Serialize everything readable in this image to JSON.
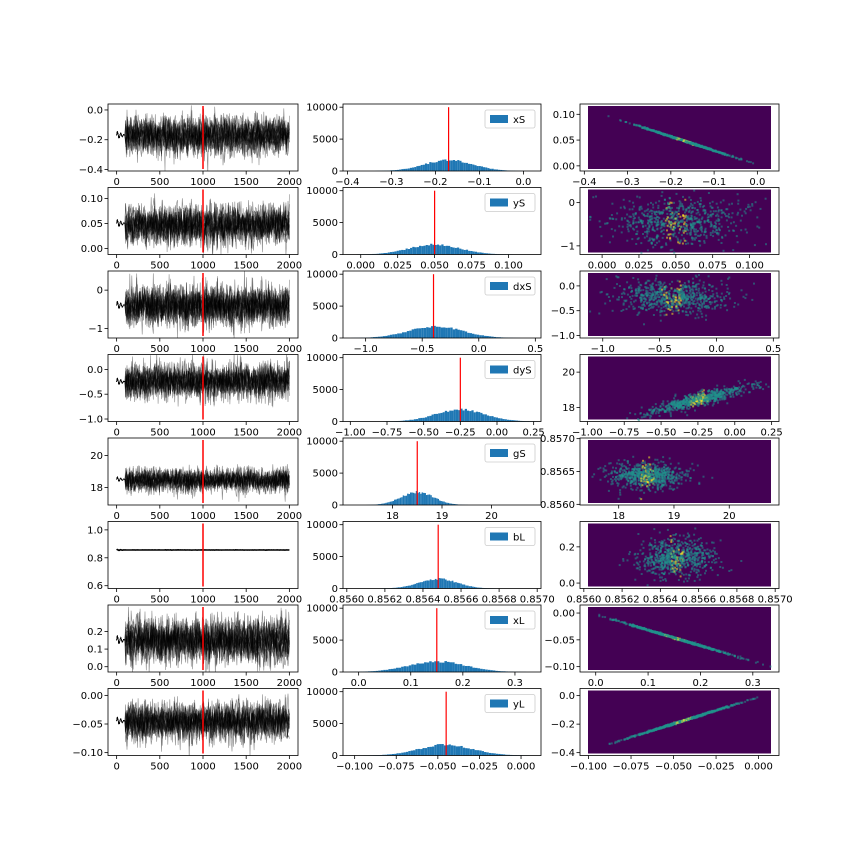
{
  "colors": {
    "trace": "#000000",
    "vline": "#ff0000",
    "hist": "#1f77b4",
    "heat_bg": "#440154",
    "heat_mid": "#21918c",
    "heat_high": "#fde725"
  },
  "chart_data": [
    {
      "type": "line",
      "series_description_name": "xS",
      "xlim": [
        -100,
        2100
      ],
      "ylim": [
        -0.41,
        0.04
      ],
      "xticks": [
        0,
        500,
        1000,
        1500,
        2000
      ],
      "yticks": [
        -0.4,
        -0.2,
        0.0
      ],
      "ytick_labels": [
        "−0.4",
        "−0.2",
        "0.0"
      ],
      "xtick_labels": [
        "0",
        "500",
        "1000",
        "1500",
        "2000"
      ],
      "burnin_line_x": 1000,
      "center": -0.17,
      "spread": 0.06,
      "hist": {
        "label": "xS",
        "xlim": [
          -0.41,
          0.04
        ],
        "ylim": [
          0,
          10500
        ],
        "xticks": [
          -0.4,
          -0.3,
          -0.2,
          -0.1,
          0.0
        ],
        "xtick_labels": [
          "−0.4",
          "−0.3",
          "−0.2",
          "−0.1",
          "0.0"
        ],
        "yticks": [
          0,
          5000,
          10000
        ],
        "ytick_labels": [
          "0",
          "5000",
          "10000"
        ],
        "mean": -0.17,
        "sd": 0.055,
        "peak": 1700,
        "marker": -0.17
      },
      "heatmap": {
        "xlim": [
          -0.41,
          0.05
        ],
        "ylim": [
          -0.01,
          0.12
        ],
        "xticks": [
          -0.4,
          -0.3,
          -0.2,
          -0.1,
          0.0
        ],
        "xtick_labels": [
          "−0.4",
          "−0.3",
          "−0.2",
          "−0.1",
          "0.0"
        ],
        "yticks": [
          0.0,
          0.05,
          0.1
        ],
        "ytick_labels": [
          "0.00",
          "0.05",
          "0.10"
        ],
        "shape": "line",
        "mx": -0.17,
        "my": 0.05,
        "sx": 0.055,
        "sy": 0.015,
        "slope": -0.46
      }
    },
    {
      "type": "line",
      "xlim": [
        -100,
        2100
      ],
      "ylim": [
        -0.012,
        0.122
      ],
      "xticks": [
        0,
        500,
        1000,
        1500,
        2000
      ],
      "xtick_labels": [
        "0",
        "500",
        "1000",
        "1500",
        "2000"
      ],
      "yticks": [
        0.0,
        0.05,
        0.1
      ],
      "ytick_labels": [
        "0.00",
        "0.05",
        "0.10"
      ],
      "burnin_line_x": 1000,
      "center": 0.05,
      "spread": 0.018,
      "hist": {
        "label": "yS",
        "xlim": [
          -0.012,
          0.122
        ],
        "ylim": [
          0,
          10500
        ],
        "xticks": [
          0.0,
          0.025,
          0.05,
          0.075,
          0.1
        ],
        "xtick_labels": [
          "0.000",
          "0.025",
          "0.050",
          "0.075",
          "0.100"
        ],
        "yticks": [
          0,
          5000,
          10000
        ],
        "ytick_labels": [
          "0",
          "5000",
          "10000"
        ],
        "mean": 0.05,
        "sd": 0.017,
        "peak": 1600,
        "marker": 0.05
      },
      "heatmap": {
        "xlim": [
          -0.015,
          0.12
        ],
        "ylim": [
          -1.2,
          0.35
        ],
        "xticks": [
          0.0,
          0.025,
          0.05,
          0.075,
          0.1
        ],
        "xtick_labels": [
          "0.000",
          "0.025",
          "0.050",
          "0.075",
          "0.100"
        ],
        "yticks": [
          -1,
          0
        ],
        "ytick_labels": [
          "−1",
          "0"
        ],
        "shape": "blob",
        "mx": 0.05,
        "my": -0.4,
        "sx": 0.022,
        "sy": 0.28,
        "slope": 0
      }
    },
    {
      "type": "line",
      "xlim": [
        -100,
        2100
      ],
      "ylim": [
        -1.25,
        0.5
      ],
      "xticks": [
        0,
        500,
        1000,
        1500,
        2000
      ],
      "xtick_labels": [
        "0",
        "500",
        "1000",
        "1500",
        "2000"
      ],
      "yticks": [
        -1,
        0
      ],
      "ytick_labels": [
        "−1",
        "0"
      ],
      "burnin_line_x": 1000,
      "center": -0.4,
      "spread": 0.25,
      "hist": {
        "label": "dxS",
        "xlim": [
          -1.2,
          0.55
        ],
        "ylim": [
          0,
          10500
        ],
        "xticks": [
          -1.0,
          -0.5,
          0.0,
          0.5
        ],
        "xtick_labels": [
          "−1.0",
          "−0.5",
          "0.0",
          "0.5"
        ],
        "yticks": [
          0,
          5000,
          10000
        ],
        "ytick_labels": [
          "0",
          "5000",
          "10000"
        ],
        "mean": -0.38,
        "sd": 0.24,
        "peak": 1800,
        "marker": -0.4
      },
      "heatmap": {
        "xlim": [
          -1.2,
          0.55
        ],
        "ylim": [
          -1.05,
          0.3
        ],
        "xticks": [
          -1.0,
          -0.5,
          0.0,
          0.5
        ],
        "xtick_labels": [
          "−1.0",
          "−0.5",
          "0.0",
          "0.5"
        ],
        "yticks": [
          -1.0,
          -0.5,
          0.0
        ],
        "ytick_labels": [
          "−1.0",
          "−0.5",
          "0.0"
        ],
        "shape": "blob",
        "mx": -0.4,
        "my": -0.2,
        "sx": 0.25,
        "sy": 0.17,
        "slope": 0
      }
    },
    {
      "type": "line",
      "xlim": [
        -100,
        2100
      ],
      "ylim": [
        -1.05,
        0.3
      ],
      "xticks": [
        0,
        500,
        1000,
        1500,
        2000
      ],
      "xtick_labels": [
        "0",
        "500",
        "1000",
        "1500",
        "2000"
      ],
      "yticks": [
        -1.0,
        -0.5,
        0.0
      ],
      "ytick_labels": [
        "−1.0",
        "−0.5",
        "0.0"
      ],
      "burnin_line_x": 1000,
      "center": -0.25,
      "spread": 0.17,
      "hist": {
        "label": "dyS",
        "xlim": [
          -1.05,
          0.3
        ],
        "ylim": [
          0,
          10500
        ],
        "xticks": [
          -1.0,
          -0.75,
          -0.5,
          -0.25,
          0.0,
          0.25
        ],
        "xtick_labels": [
          "−1.00",
          "−0.75",
          "−0.50",
          "−0.25",
          "0.00",
          "0.25"
        ],
        "yticks": [
          0,
          5000,
          10000
        ],
        "ytick_labels": [
          "0",
          "5000",
          "10000"
        ],
        "mean": -0.25,
        "sd": 0.17,
        "peak": 1850,
        "marker": -0.25
      },
      "heatmap": {
        "xlim": [
          -1.05,
          0.3
        ],
        "ylim": [
          17.2,
          21.0
        ],
        "xticks": [
          -1.0,
          -0.75,
          -0.5,
          -0.25,
          0.0,
          0.25
        ],
        "xtick_labels": [
          "−1.00",
          "−0.75",
          "−0.50",
          "−0.25",
          "0.00",
          "0.25"
        ],
        "yticks": [
          18,
          20
        ],
        "ytick_labels": [
          "18",
          "20"
        ],
        "shape": "curve",
        "mx": -0.25,
        "my": 18.5,
        "sx": 0.17,
        "sy": 0.3,
        "slope": 0
      }
    },
    {
      "type": "line",
      "xlim": [
        -100,
        2100
      ],
      "ylim": [
        16.9,
        21.1
      ],
      "xticks": [
        0,
        500,
        1000,
        1500,
        2000
      ],
      "xtick_labels": [
        "0",
        "500",
        "1000",
        "1500",
        "2000"
      ],
      "yticks": [
        18,
        20
      ],
      "ytick_labels": [
        "18",
        "20"
      ],
      "burnin_line_x": 1000,
      "center": 18.5,
      "spread": 0.35,
      "hist": {
        "label": "gS",
        "xlim": [
          17.0,
          21.0
        ],
        "ylim": [
          0,
          10500
        ],
        "xticks": [
          18,
          19,
          20
        ],
        "xtick_labels": [
          "18",
          "19",
          "20"
        ],
        "yticks": [
          0,
          5000,
          10000
        ],
        "ytick_labels": [
          "0",
          "5000",
          "10000"
        ],
        "mean": 18.5,
        "sd": 0.33,
        "peak": 2000,
        "marker": 18.5
      },
      "heatmap": {
        "xlim": [
          17.3,
          20.9
        ],
        "ylim": [
          0.85599,
          0.85701
        ],
        "xticks": [
          18,
          19,
          20
        ],
        "xtick_labels": [
          "18",
          "19",
          "20"
        ],
        "yticks": [
          0.856,
          0.8565,
          0.857
        ],
        "ytick_labels": [
          "0.8560",
          "0.8565",
          "0.8570"
        ],
        "shape": "blob",
        "mx": 18.5,
        "my": 0.85645,
        "sx": 0.35,
        "sy": 0.0001,
        "slope": 0
      }
    },
    {
      "type": "line",
      "xlim": [
        -100,
        2100
      ],
      "ylim": [
        0.58,
        1.06
      ],
      "xticks": [
        0,
        500,
        1000,
        1500,
        2000
      ],
      "xtick_labels": [
        "0",
        "500",
        "1000",
        "1500",
        "2000"
      ],
      "yticks": [
        0.6,
        0.8,
        1.0
      ],
      "ytick_labels": [
        "0.6",
        "0.8",
        "1.0"
      ],
      "burnin_line_x": 1000,
      "center": 0.856,
      "spread": 0.0005,
      "hist": {
        "label": "bL",
        "xlim": [
          0.85598,
          0.85702
        ],
        "ylim": [
          0,
          10500
        ],
        "xticks": [
          0.856,
          0.8562,
          0.8564,
          0.8566,
          0.8568,
          0.857
        ],
        "xtick_labels": [
          "0.8560",
          "0.8562",
          "0.8564",
          "0.8566",
          "0.8568",
          "0.8570"
        ],
        "yticks": [
          0,
          5000,
          10000
        ],
        "ytick_labels": [
          "0",
          "5000",
          "10000"
        ],
        "mean": 0.85648,
        "sd": 0.0001,
        "peak": 1500,
        "marker": 0.85648
      },
      "heatmap": {
        "xlim": [
          0.85598,
          0.85702
        ],
        "ylim": [
          -0.03,
          0.34
        ],
        "xticks": [
          0.856,
          0.8562,
          0.8564,
          0.8566,
          0.8568,
          0.857
        ],
        "xtick_labels": [
          "0.8560",
          "0.8562",
          "0.8564",
          "0.8566",
          "0.8568",
          "0.8570"
        ],
        "yticks": [
          0.0,
          0.2
        ],
        "ytick_labels": [
          "0.0",
          "0.2"
        ],
        "shape": "blob",
        "mx": 0.85648,
        "my": 0.15,
        "sx": 0.0001,
        "sy": 0.055,
        "slope": 0
      }
    },
    {
      "type": "line",
      "xlim": [
        -100,
        2100
      ],
      "ylim": [
        -0.03,
        0.35
      ],
      "xticks": [
        0,
        500,
        1000,
        1500,
        2000
      ],
      "xtick_labels": [
        "0",
        "500",
        "1000",
        "1500",
        "2000"
      ],
      "yticks": [
        0.0,
        0.1,
        0.2
      ],
      "ytick_labels": [
        "0.0",
        "0.1",
        "0.2"
      ],
      "burnin_line_x": 1000,
      "center": 0.15,
      "spread": 0.06,
      "hist": {
        "label": "xL",
        "xlim": [
          -0.03,
          0.35
        ],
        "ylim": [
          0,
          10500
        ],
        "xticks": [
          0.0,
          0.1,
          0.2,
          0.3
        ],
        "xtick_labels": [
          "0.0",
          "0.1",
          "0.2",
          "0.3"
        ],
        "yticks": [
          0,
          5000,
          10000
        ],
        "ytick_labels": [
          "0",
          "5000",
          "10000"
        ],
        "mean": 0.15,
        "sd": 0.055,
        "peak": 1650,
        "marker": 0.15
      },
      "heatmap": {
        "xlim": [
          -0.03,
          0.35
        ],
        "ylim": [
          -0.11,
          0.015
        ],
        "xticks": [
          0.0,
          0.1,
          0.2,
          0.3
        ],
        "xtick_labels": [
          "0.0",
          "0.1",
          "0.2",
          "0.3"
        ],
        "yticks": [
          -0.1,
          -0.05,
          0.0
        ],
        "ytick_labels": [
          "−0.10",
          "−0.05",
          "0.00"
        ],
        "shape": "line",
        "mx": 0.15,
        "my": -0.045,
        "sx": 0.055,
        "sy": 0.016,
        "slope": -0.3
      }
    },
    {
      "type": "line",
      "xlim": [
        -100,
        2100
      ],
      "ylim": [
        -0.105,
        0.012
      ],
      "xticks": [
        0,
        500,
        1000,
        1500,
        2000
      ],
      "xtick_labels": [
        "0",
        "500",
        "1000",
        "1500",
        "2000"
      ],
      "yticks": [
        -0.1,
        -0.05,
        0.0
      ],
      "ytick_labels": [
        "−0.10",
        "−0.05",
        "0.00"
      ],
      "burnin_line_x": 1000,
      "center": -0.045,
      "spread": 0.016,
      "hist": {
        "label": "yL",
        "xlim": [
          -0.107,
          0.012
        ],
        "ylim": [
          0,
          10500
        ],
        "xticks": [
          -0.1,
          -0.075,
          -0.05,
          -0.025,
          0.0
        ],
        "xtick_labels": [
          "−0.100",
          "−0.075",
          "−0.050",
          "−0.025",
          "0.000"
        ],
        "yticks": [
          0,
          5000,
          10000
        ],
        "ytick_labels": [
          "0",
          "5000",
          "10000"
        ],
        "mean": -0.045,
        "sd": 0.016,
        "peak": 1700,
        "marker": -0.045
      },
      "heatmap": {
        "xlim": [
          -0.105,
          0.012
        ],
        "ylim": [
          -0.42,
          0.05
        ],
        "xticks": [
          -0.1,
          -0.075,
          -0.05,
          -0.025,
          0.0
        ],
        "xtick_labels": [
          "−0.100",
          "−0.075",
          "−0.050",
          "−0.025",
          "0.000"
        ],
        "yticks": [
          -0.4,
          -0.2,
          0.0
        ],
        "ytick_labels": [
          "−0.4",
          "−0.2",
          "0.0"
        ],
        "shape": "line",
        "mx": -0.045,
        "my": -0.17,
        "sx": 0.016,
        "sy": 0.06,
        "slope": 3.7
      }
    }
  ]
}
